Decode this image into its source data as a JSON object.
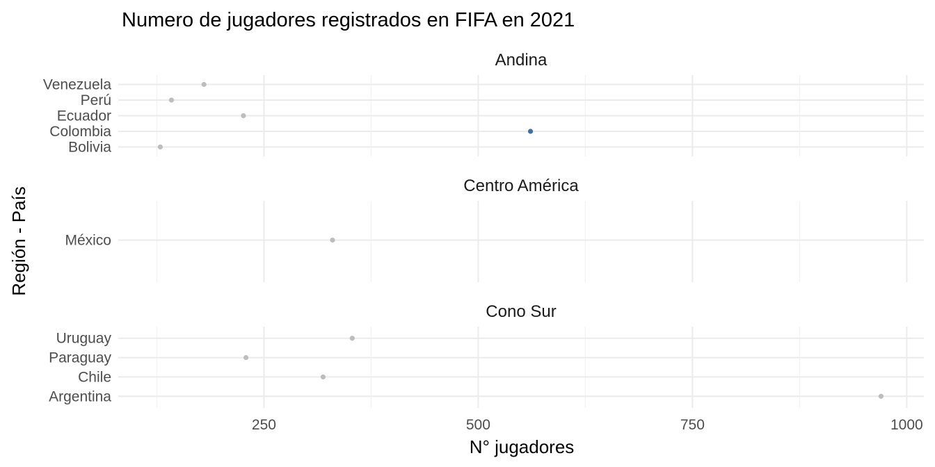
{
  "chart_data": {
    "type": "scatter",
    "title": "Numero de jugadores registrados en FIFA en 2021",
    "xlabel": "N° jugadores",
    "ylabel": "Región - País",
    "xlim": [
      80,
      1020
    ],
    "xticks": [
      250,
      500,
      750,
      1000
    ],
    "xminor_ticks": [
      125,
      375,
      625,
      875
    ],
    "grid": true,
    "legend": "none",
    "highlight_color": "#3b6fa8",
    "point_color": "#bdbdbd",
    "facets": [
      {
        "name": "Andina",
        "points": [
          {
            "country": "Venezuela",
            "value": 180,
            "highlight": false
          },
          {
            "country": "Perú",
            "value": 142,
            "highlight": false
          },
          {
            "country": "Ecuador",
            "value": 226,
            "highlight": false
          },
          {
            "country": "Colombia",
            "value": 561,
            "highlight": true
          },
          {
            "country": "Bolivia",
            "value": 129,
            "highlight": false
          }
        ]
      },
      {
        "name": "Centro América",
        "points": [
          {
            "country": "México",
            "value": 330,
            "highlight": false
          }
        ]
      },
      {
        "name": "Cono Sur",
        "points": [
          {
            "country": "Uruguay",
            "value": 353,
            "highlight": false
          },
          {
            "country": "Paraguay",
            "value": 229,
            "highlight": false
          },
          {
            "country": "Chile",
            "value": 319,
            "highlight": false
          },
          {
            "country": "Argentina",
            "value": 970,
            "highlight": false
          }
        ]
      }
    ]
  }
}
